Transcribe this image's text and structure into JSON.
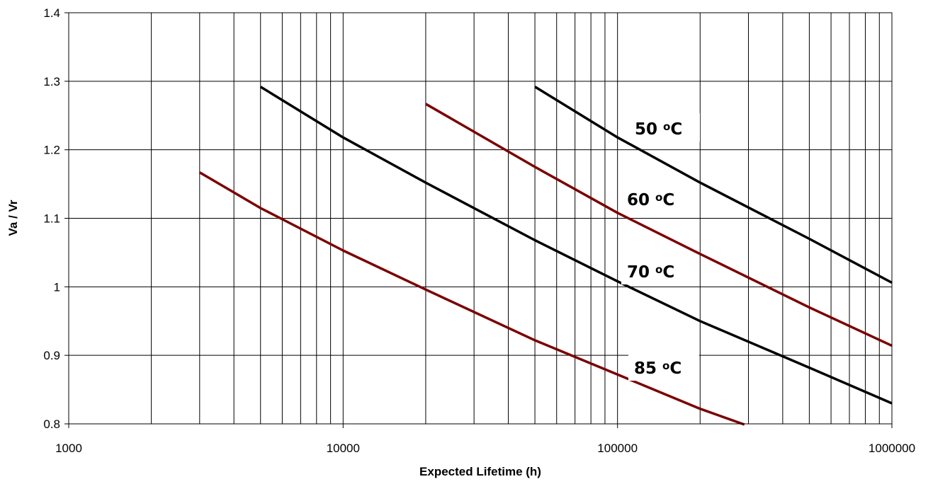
{
  "chart_data": {
    "type": "line",
    "title": "",
    "xlabel": "Expected Lifetime (h)",
    "ylabel": "Va / Vr",
    "xscale": "log",
    "xlim": [
      1000,
      1000000
    ],
    "ylim": [
      0.8,
      1.4
    ],
    "grid": true,
    "legend": "none",
    "x_tick_labels": [
      "1000",
      "10000",
      "100000",
      "1000000"
    ],
    "y_ticks": [
      0.8,
      0.9,
      1,
      1.1,
      1.2,
      1.3,
      1.4
    ],
    "y_tick_labels": [
      "0.8",
      "0.9",
      "1",
      "1.1",
      "1.2",
      "1.3",
      "1.4"
    ],
    "series": [
      {
        "label": "50 oC",
        "color": "#000000",
        "x": [
          50000,
          100000,
          200000,
          500000,
          1000000
        ],
        "y": [
          1.292,
          1.218,
          1.152,
          1.07,
          1.006
        ]
      },
      {
        "label": "60 oC",
        "color": "#7b0000",
        "x": [
          20000,
          50000,
          100000,
          200000,
          500000,
          1000000
        ],
        "y": [
          1.267,
          1.175,
          1.108,
          1.048,
          0.97,
          0.914
        ]
      },
      {
        "label": "70 oC",
        "color": "#000000",
        "x": [
          5000,
          10000,
          20000,
          50000,
          100000,
          200000,
          500000,
          1000000
        ],
        "y": [
          1.292,
          1.218,
          1.152,
          1.068,
          1.008,
          0.95,
          0.882,
          0.83
        ]
      },
      {
        "label": "85 oC",
        "color": "#7b0000",
        "x": [
          3000,
          5000,
          10000,
          20000,
          50000,
          100000,
          200000,
          290000
        ],
        "y": [
          1.167,
          1.115,
          1.053,
          0.996,
          0.922,
          0.872,
          0.822,
          0.799
        ]
      }
    ],
    "annotations": [
      {
        "text": "50 ",
        "sup": "o",
        "unit": "C",
        "series": 0
      },
      {
        "text": "60 ",
        "sup": "o",
        "unit": "C",
        "series": 1
      },
      {
        "text": "70 ",
        "sup": "o",
        "unit": "C",
        "series": 2
      },
      {
        "text": "85 ",
        "sup": "o",
        "unit": "C",
        "series": 3
      }
    ]
  }
}
